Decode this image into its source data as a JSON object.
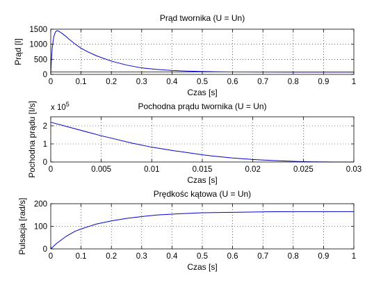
{
  "chart_data": [
    {
      "type": "line",
      "title": "Prąd twornika (U = Un)",
      "xlabel": "Czas [s]",
      "ylabel": "Prąd [I]",
      "xlim": [
        0,
        1
      ],
      "ylim": [
        0,
        1500
      ],
      "xticks": [
        0,
        0.1,
        0.2,
        0.3,
        0.4,
        0.5,
        0.6,
        0.7,
        0.8,
        0.9,
        1
      ],
      "xtick_labels": [
        "0",
        "0.1",
        "0.2",
        "0.3",
        "0.4",
        "0.5",
        "0.6",
        "0.7",
        "0.8",
        "0.9",
        "1"
      ],
      "yticks": [
        0,
        500,
        1000,
        1500
      ],
      "ytick_labels": [
        "0",
        "500",
        "1000",
        "1500"
      ],
      "grid": true,
      "series": [
        {
          "color": "#0000cc",
          "x": [
            0,
            0.002,
            0.005,
            0.01,
            0.015,
            0.02,
            0.025,
            0.03,
            0.04,
            0.05,
            0.06,
            0.08,
            0.1,
            0.12,
            0.15,
            0.2,
            0.25,
            0.3,
            0.35,
            0.4,
            0.45,
            0.5,
            0.55,
            0.6,
            0.7,
            0.8,
            0.9,
            1.0
          ],
          "y": [
            0,
            450,
            900,
            1250,
            1400,
            1450,
            1440,
            1410,
            1340,
            1260,
            1170,
            1010,
            870,
            760,
            620,
            440,
            310,
            215,
            165,
            130,
            110,
            95,
            88,
            82,
            78,
            75,
            74,
            74
          ]
        },
        {
          "color": "#cc0000",
          "x": [
            0,
            1
          ],
          "y": [
            80,
            80
          ]
        }
      ]
    },
    {
      "type": "line",
      "title": "Pochodna prądu twornika (U = Un)",
      "xlabel": "Czas [s]",
      "ylabel": "Pochodna prądu [I/s]",
      "multiplier_label": "x 10",
      "multiplier_exp": "5",
      "xlim": [
        0,
        0.03
      ],
      "ylim": [
        0,
        2.5
      ],
      "xticks": [
        0,
        0.005,
        0.01,
        0.015,
        0.02,
        0.025,
        0.03
      ],
      "xtick_labels": [
        "0",
        "0.005",
        "0.01",
        "0.015",
        "0.02",
        "0.025",
        "0.03"
      ],
      "yticks": [
        0,
        1,
        2
      ],
      "ytick_labels": [
        "0",
        "1",
        "2"
      ],
      "grid": true,
      "series": [
        {
          "color": "#0000cc",
          "x": [
            0,
            0.002,
            0.004,
            0.005,
            0.006,
            0.008,
            0.01,
            0.012,
            0.014,
            0.015,
            0.016,
            0.018,
            0.02,
            0.022,
            0.024,
            0.025,
            0.026,
            0.028,
            0.03
          ],
          "y": [
            2.2,
            1.9,
            1.6,
            1.45,
            1.32,
            1.05,
            0.82,
            0.64,
            0.48,
            0.4,
            0.33,
            0.22,
            0.14,
            0.08,
            0.04,
            0.02,
            0.01,
            0.0,
            0.0
          ]
        }
      ]
    },
    {
      "type": "line",
      "title": "Prędkośc kątowa (U = Un)",
      "xlabel": "Czas [s]",
      "ylabel": "Pulsacja [rad/s]",
      "xlim": [
        0,
        1
      ],
      "ylim": [
        0,
        200
      ],
      "xticks": [
        0,
        0.1,
        0.2,
        0.3,
        0.4,
        0.5,
        0.6,
        0.7,
        0.8,
        0.9,
        1
      ],
      "xtick_labels": [
        "0",
        "0.1",
        "0.2",
        "0.3",
        "0.4",
        "0.5",
        "0.6",
        "0.7",
        "0.8",
        "0.9",
        "1"
      ],
      "yticks": [
        0,
        100,
        200
      ],
      "ytick_labels": [
        "0",
        "100",
        "200"
      ],
      "grid": true,
      "series": [
        {
          "color": "#0000cc",
          "x": [
            0,
            0.02,
            0.05,
            0.08,
            0.1,
            0.15,
            0.2,
            0.25,
            0.3,
            0.35,
            0.4,
            0.45,
            0.5,
            0.6,
            0.7,
            0.8,
            0.9,
            1.0
          ],
          "y": [
            0,
            25,
            55,
            78,
            88,
            110,
            124,
            135,
            143,
            150,
            154,
            157,
            160,
            162,
            164,
            165,
            165,
            165
          ]
        }
      ]
    }
  ]
}
